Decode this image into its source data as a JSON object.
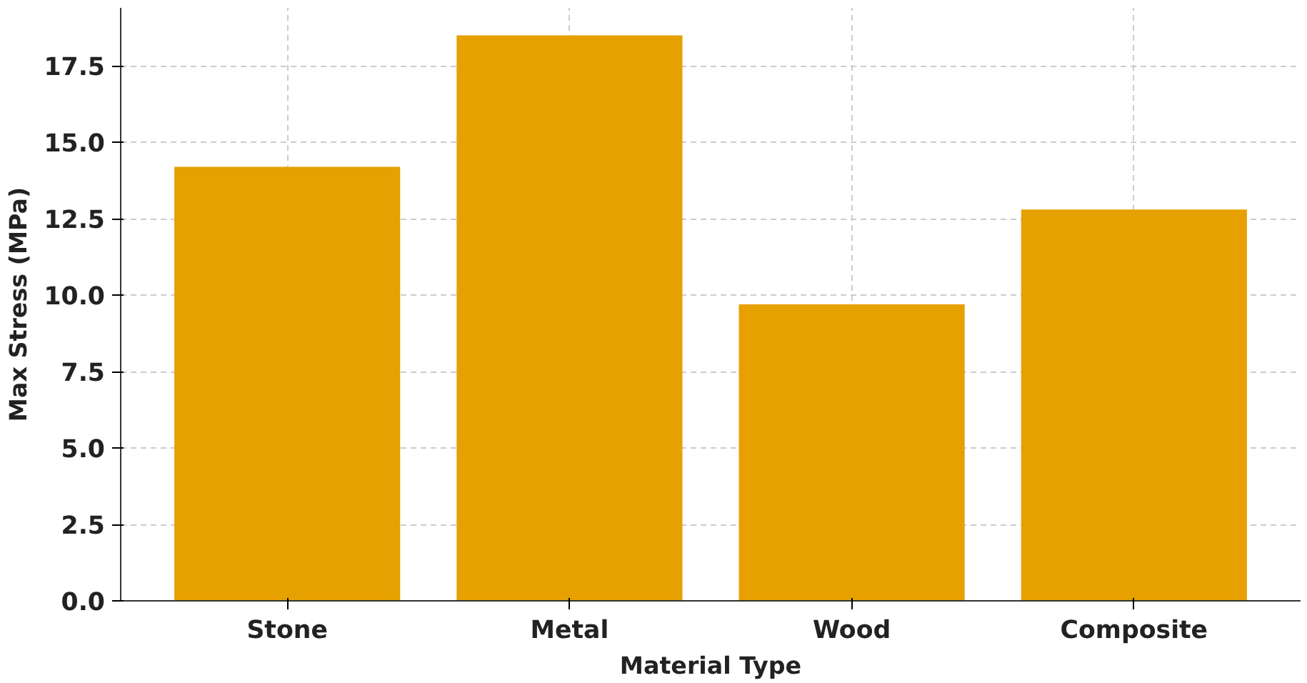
{
  "chart_data": {
    "type": "bar",
    "xlabel": "Material Type",
    "ylabel": "Max Stress (MPa)",
    "categories": [
      "Stone",
      "Metal",
      "Wood",
      "Composite"
    ],
    "values": [
      14.2,
      18.5,
      9.7,
      12.8
    ],
    "color": "#e6a000",
    "ylim": [
      0,
      19.4
    ],
    "yticks": [
      {
        "value": 0,
        "label": "0.0"
      },
      2.5,
      {
        "value": 5,
        "label": "5.0"
      },
      7.5,
      {
        "value": 10,
        "label": "10.0"
      },
      12.5,
      {
        "value": 15,
        "label": "15.0"
      },
      17.5
    ],
    "grid": true
  }
}
